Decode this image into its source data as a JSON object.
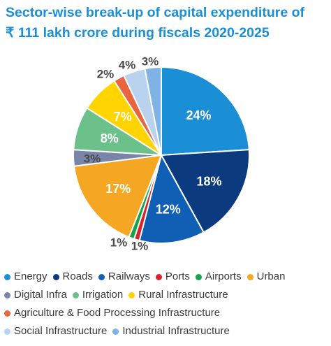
{
  "chart_data": {
    "type": "pie",
    "title": "Sector-wise break-up of capital expenditure of ₹ 111 lakh crore during fiscals 2020-2025",
    "title_line1": "Sector-wise break-up of capital expenditure of",
    "title_line2": "₹ 111 lakh crore during fiscals 2020-2025",
    "slices": [
      {
        "name": "Energy",
        "value": 24,
        "label": "24%",
        "color": "#1a8fd6"
      },
      {
        "name": "Roads",
        "value": 18,
        "label": "18%",
        "color": "#0b3a7e"
      },
      {
        "name": "Railways",
        "value": 12,
        "label": "12%",
        "color": "#0f5fb5"
      },
      {
        "name": "Ports",
        "value": 1,
        "label": "1%",
        "color": "#d8232a"
      },
      {
        "name": "Airports",
        "value": 1,
        "label": "1%",
        "color": "#17a34a"
      },
      {
        "name": "Urban",
        "value": 17,
        "label": "17%",
        "color": "#f5a623"
      },
      {
        "name": "Digital Infra",
        "value": 3,
        "label": "3%",
        "color": "#7a83a8"
      },
      {
        "name": "Irrigation",
        "value": 8,
        "label": "8%",
        "color": "#6cc08a"
      },
      {
        "name": "Rural Infrastructure",
        "value": 7,
        "label": "7%",
        "color": "#ffd400"
      },
      {
        "name": "Agriculture & Food Processing Infrastructure",
        "value": 2,
        "label": "2%",
        "color": "#e8653f"
      },
      {
        "name": "Social Infrastructure",
        "value": 4,
        "label": "4%",
        "color": "#b9d3ee"
      },
      {
        "name": "Industrial Infrastructure",
        "value": 3,
        "label": "3%",
        "color": "#7fb2e5"
      }
    ],
    "legend_rows": [
      [
        0,
        1,
        2,
        3,
        4,
        5
      ],
      [
        6,
        7,
        8
      ],
      [
        9
      ],
      [
        10,
        11
      ]
    ],
    "legend_placement": "bottom"
  }
}
